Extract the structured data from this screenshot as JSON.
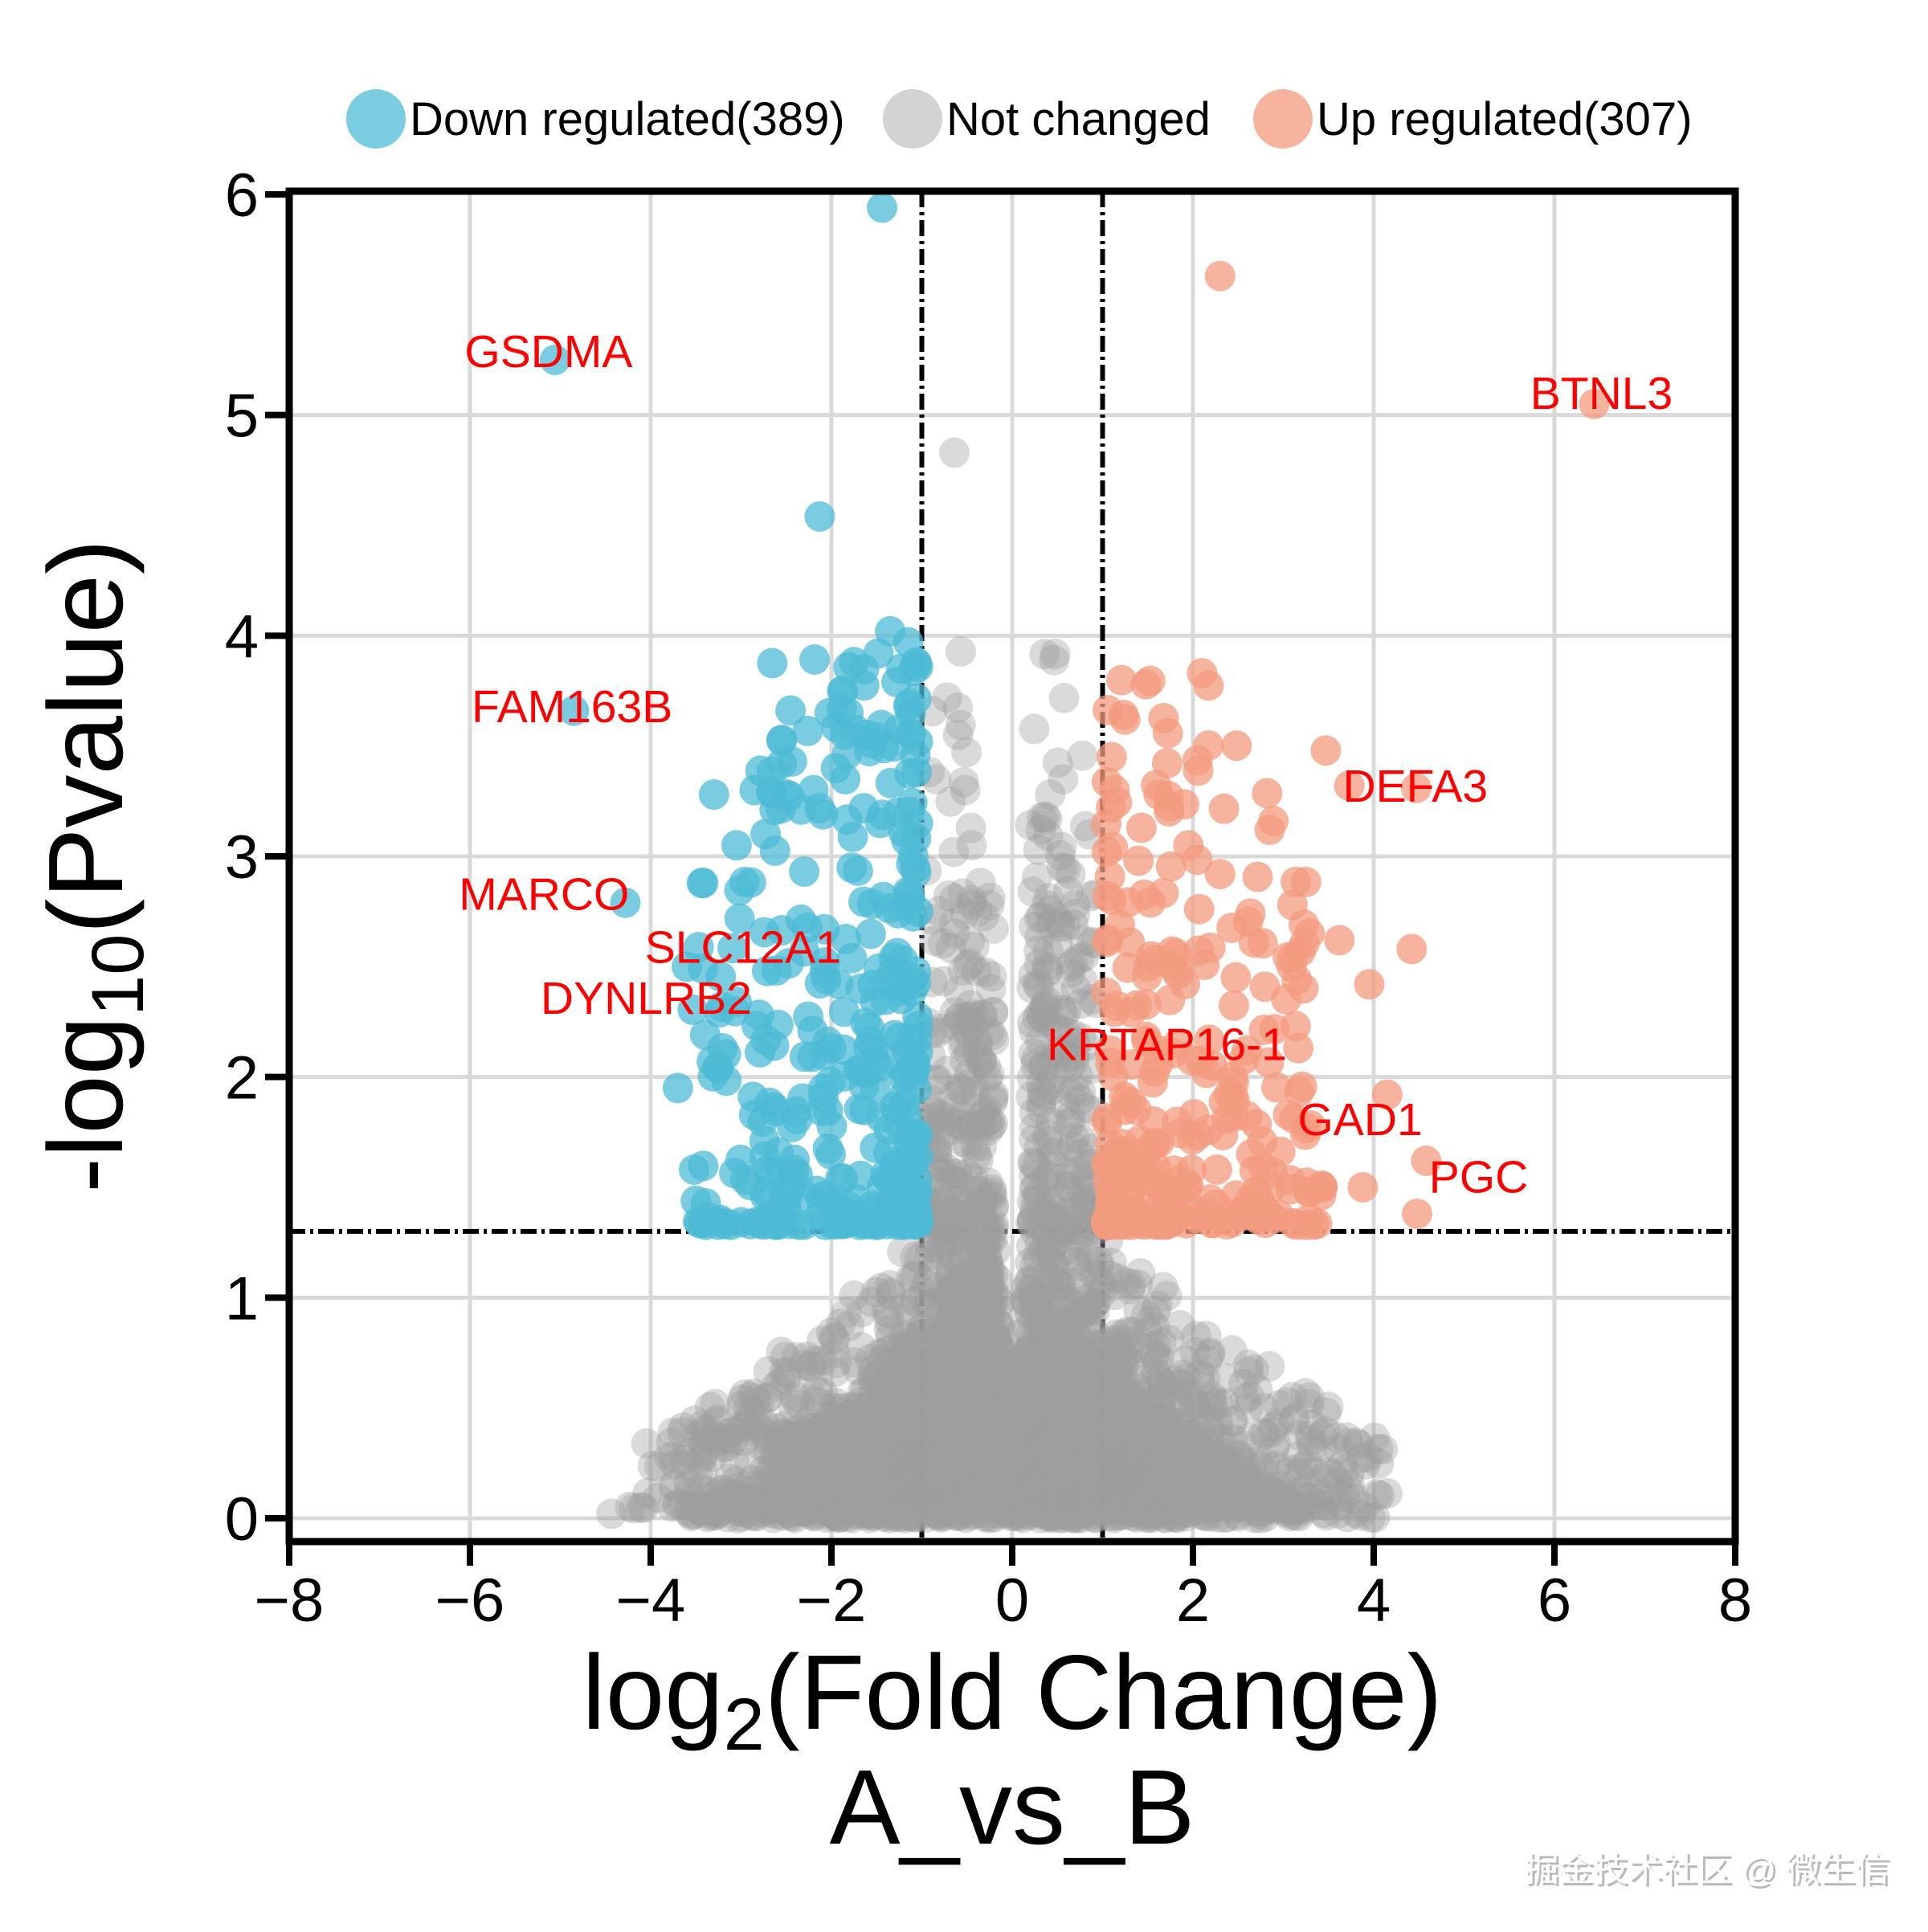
{
  "watermark": "掘金技术社区 @ 微生信",
  "chart_data": {
    "type": "scatter",
    "subtype": "volcano",
    "title": "A_vs_B",
    "xlabel": "log2(Fold Change)",
    "ylabel": "-log10(Pvalue)",
    "xlabel_parts": {
      "pre": "log",
      "sub": "2",
      "post": "(Fold Change)"
    },
    "ylabel_parts": {
      "pre": "-log",
      "sub": "10",
      "post": "(Pvalue)"
    },
    "xlim": [
      -8,
      8
    ],
    "ylim": [
      0,
      6
    ],
    "xticks": [
      -8,
      -6,
      -4,
      -2,
      0,
      2,
      4,
      6,
      8
    ],
    "yticks": [
      0,
      1,
      2,
      3,
      4,
      5,
      6
    ],
    "xtick_labels": [
      "−8",
      "−6",
      "−4",
      "−2",
      "0",
      "2",
      "4",
      "6",
      "8"
    ],
    "ytick_labels": [
      "0",
      "1",
      "2",
      "3",
      "4",
      "5",
      "6"
    ],
    "grid": true,
    "legend_position": "top",
    "legend": {
      "entries": [
        {
          "label": "Down regulated(389)",
          "count": 389,
          "color": "#7ec9dc"
        },
        {
          "label": "Not changed",
          "count": null,
          "color": "#cfcfcf"
        },
        {
          "label": "Up regulated(307)",
          "count": 307,
          "color": "#f6b29b"
        }
      ]
    },
    "thresholds": {
      "log2fc": [
        -1,
        1
      ],
      "neg_log10_pvalue": 1.3
    },
    "colors": {
      "down": "#4dbbd5",
      "up": "#f39b7f",
      "not_changed": "#9e9e9e",
      "down_alpha": 0.75,
      "up_alpha": 0.75,
      "gray_alpha": 0.38,
      "label_red": "#fe0000",
      "grid": "#d9d9d9",
      "spine": "#000000"
    },
    "labeled_genes": [
      {
        "name": "GSDMA",
        "label": [
          -5.13,
          5.29
        ],
        "point": [
          -5.06,
          5.25
        ],
        "group": "down"
      },
      {
        "name": "BTNL3",
        "label": [
          6.52,
          5.1
        ],
        "point": [
          6.44,
          5.05
        ],
        "group": "up"
      },
      {
        "name": "FAM163B",
        "label": [
          -4.87,
          3.68
        ],
        "point": [
          -4.85,
          3.66
        ],
        "group": "down"
      },
      {
        "name": "MARCO",
        "label": [
          -5.18,
          2.83
        ],
        "point": [
          -4.28,
          2.79
        ],
        "group": "down"
      },
      {
        "name": "SLC12A1",
        "label": [
          -2.98,
          2.59
        ],
        "point": [
          -2.3,
          2.57
        ],
        "group": "down"
      },
      {
        "name": "DYNLRB2",
        "label": [
          -4.05,
          2.36
        ],
        "point": [
          -3.05,
          2.34
        ],
        "group": "down"
      },
      {
        "name": "DEFA3",
        "label": [
          4.46,
          3.32
        ],
        "point": [
          3.73,
          3.32
        ],
        "group": "up"
      },
      {
        "name": "KRTAP16-1",
        "label": [
          1.71,
          2.15
        ],
        "point": [
          1.08,
          2.12
        ],
        "group": "up"
      },
      {
        "name": "GAD1",
        "label": [
          3.85,
          1.81
        ],
        "point": [
          3.3,
          1.78
        ],
        "group": "up"
      },
      {
        "name": "PGC",
        "label": [
          5.16,
          1.55
        ],
        "point": [
          4.58,
          1.62
        ],
        "group": "up"
      }
    ],
    "outlier_points": {
      "down": [
        [
          -1.44,
          5.94
        ],
        [
          -2.13,
          4.54
        ],
        [
          -1.35,
          4.02
        ],
        [
          -1.15,
          3.97
        ],
        [
          -1.48,
          3.92
        ],
        [
          -1.75,
          3.88
        ],
        [
          -1.1,
          3.84
        ],
        [
          -1.28,
          3.79
        ],
        [
          -2.02,
          3.65
        ],
        [
          -1.62,
          3.55
        ],
        [
          -2.55,
          3.42
        ],
        [
          -3.3,
          3.28
        ],
        [
          -2.85,
          3.3
        ],
        [
          -1.95,
          3.4
        ],
        [
          -2.2,
          3.3
        ],
        [
          -3.05,
          3.05
        ],
        [
          -3.42,
          2.88
        ],
        [
          -3.6,
          2.5
        ],
        [
          -3.7,
          1.95
        ],
        [
          -3.52,
          1.58
        ]
      ],
      "up": [
        [
          2.3,
          5.63
        ],
        [
          2.1,
          3.83
        ],
        [
          1.48,
          3.78
        ],
        [
          1.1,
          3.45
        ],
        [
          1.62,
          3.28
        ],
        [
          2.85,
          3.12
        ],
        [
          1.95,
          3.05
        ],
        [
          3.47,
          3.48
        ],
        [
          2.89,
          3.16
        ],
        [
          4.47,
          3.31
        ],
        [
          2.3,
          2.92
        ],
        [
          3.1,
          2.78
        ],
        [
          3.62,
          2.62
        ],
        [
          4.42,
          2.58
        ],
        [
          3.95,
          2.42
        ],
        [
          4.15,
          1.92
        ],
        [
          4.48,
          1.38
        ],
        [
          3.88,
          1.5
        ],
        [
          1.25,
          3.62
        ]
      ],
      "not_changed": [
        [
          -0.64,
          4.83
        ],
        [
          -0.72,
          3.72
        ],
        [
          -0.6,
          3.55
        ],
        [
          -0.52,
          3.3
        ],
        [
          0.42,
          3.28
        ],
        [
          -0.45,
          3.05
        ],
        [
          0.55,
          2.95
        ],
        [
          -0.35,
          2.88
        ],
        [
          0.3,
          2.72
        ]
      ]
    },
    "cloud_spec": {
      "seed": 1337,
      "point_radius": 19,
      "mound": {
        "n": 2600,
        "w0": 0.55,
        "w1": 4.1,
        "decay": 0.72,
        "ymax": 1.28,
        "xmax": 4.55
      },
      "fan": {
        "n": 500
      },
      "column": {
        "n": 420
      },
      "bottom_row": {
        "n_left": 13,
        "n_right": 9
      },
      "down_random": 364,
      "up_random": 282
    }
  }
}
